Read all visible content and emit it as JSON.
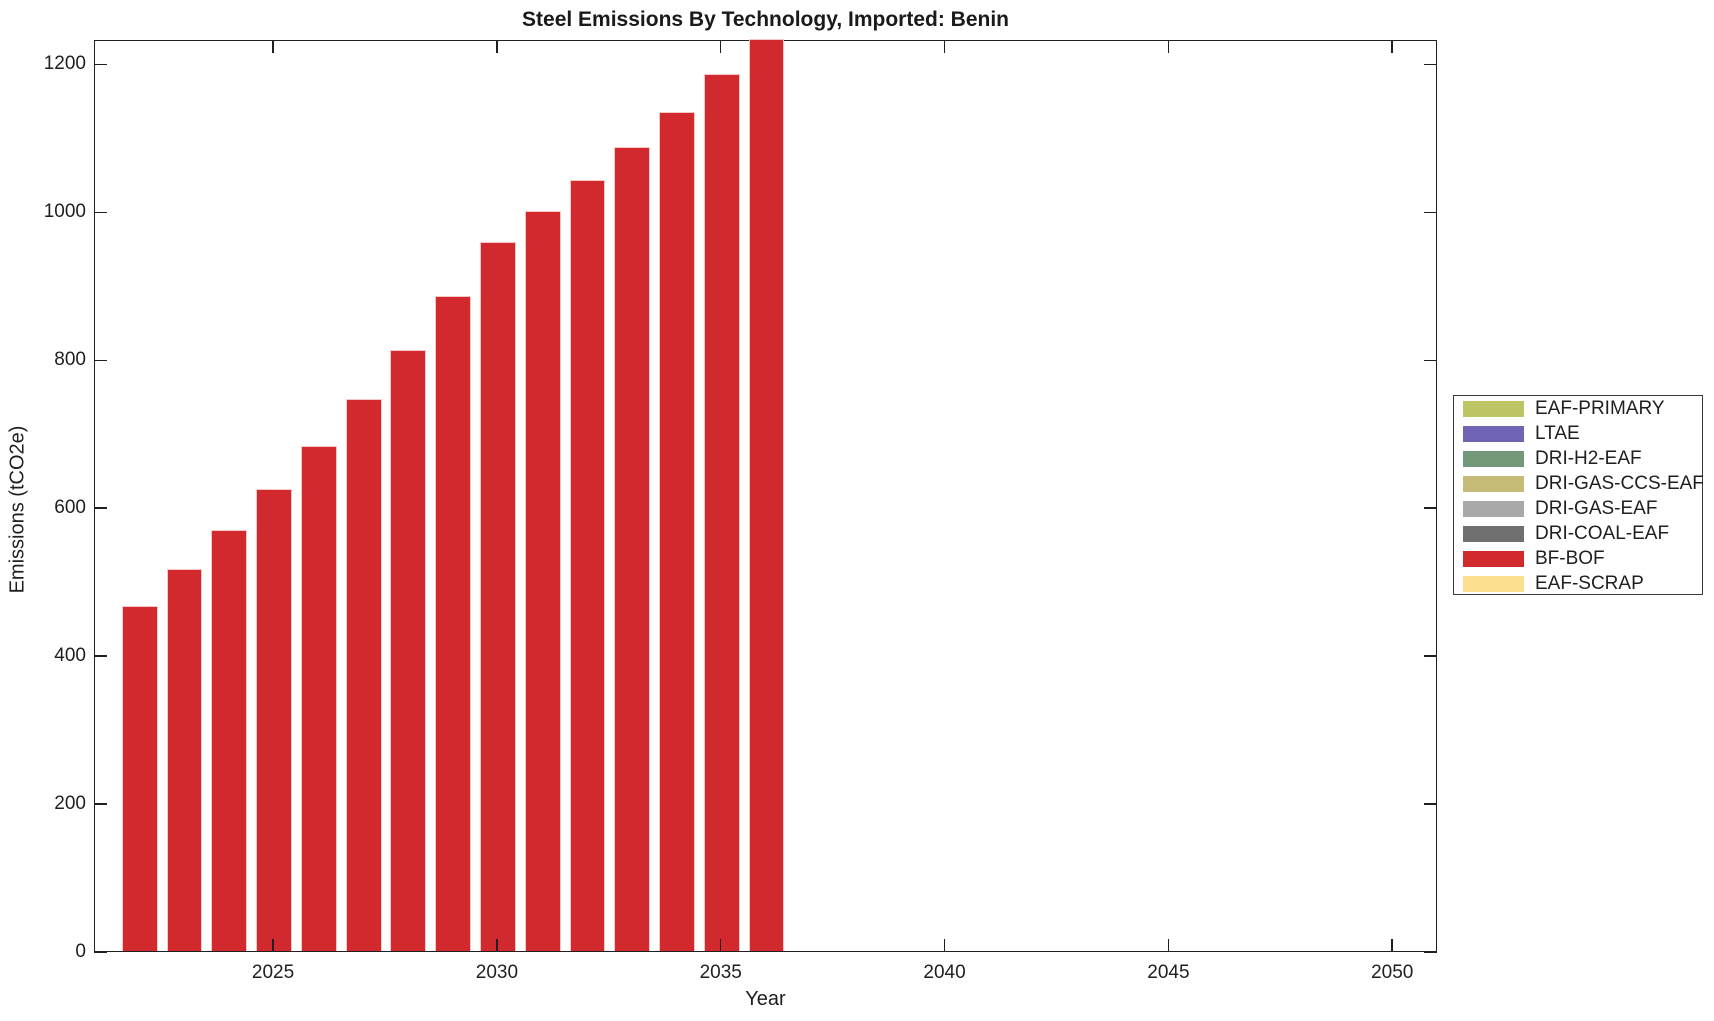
{
  "title": "Steel Emissions By Technology, Imported: Benin",
  "chart_data": {
    "type": "bar",
    "title": "Steel Emissions By Technology, Imported: Benin",
    "xlabel": "Year",
    "ylabel": "Emissions (tCO2e)",
    "xlim": [
      2021,
      2051
    ],
    "ylim": [
      0,
      1233
    ],
    "x_ticks": [
      2025,
      2030,
      2035,
      2040,
      2045,
      2050
    ],
    "y_ticks": [
      0,
      200,
      400,
      600,
      800,
      1000,
      1200
    ],
    "grid": false,
    "legend_position": "right-outside",
    "bar_width_years": 0.8,
    "visible_series": "BF-BOF",
    "x": [
      2022,
      2023,
      2024,
      2025,
      2026,
      2027,
      2028,
      2029,
      2030,
      2031,
      2032,
      2033,
      2034,
      2035,
      2036
    ],
    "values": [
      467,
      517,
      569,
      624,
      683,
      746,
      813,
      885,
      958,
      1000,
      1042,
      1087,
      1135,
      1186,
      1236
    ],
    "bar_color": "#d1292e",
    "legend": [
      {
        "label": "EAF-PRIMARY",
        "color": "#bdc463"
      },
      {
        "label": "LTAE",
        "color": "#7064b4"
      },
      {
        "label": "DRI-H2-EAF",
        "color": "#74997a"
      },
      {
        "label": "DRI-GAS-CCS-EAF",
        "color": "#c6bc77"
      },
      {
        "label": "DRI-GAS-EAF",
        "color": "#a9a9a9"
      },
      {
        "label": "DRI-COAL-EAF",
        "color": "#707070"
      },
      {
        "label": "BF-BOF",
        "color": "#d1292e"
      },
      {
        "label": "EAF-SCRAP",
        "color": "#fcdf8f"
      }
    ]
  }
}
